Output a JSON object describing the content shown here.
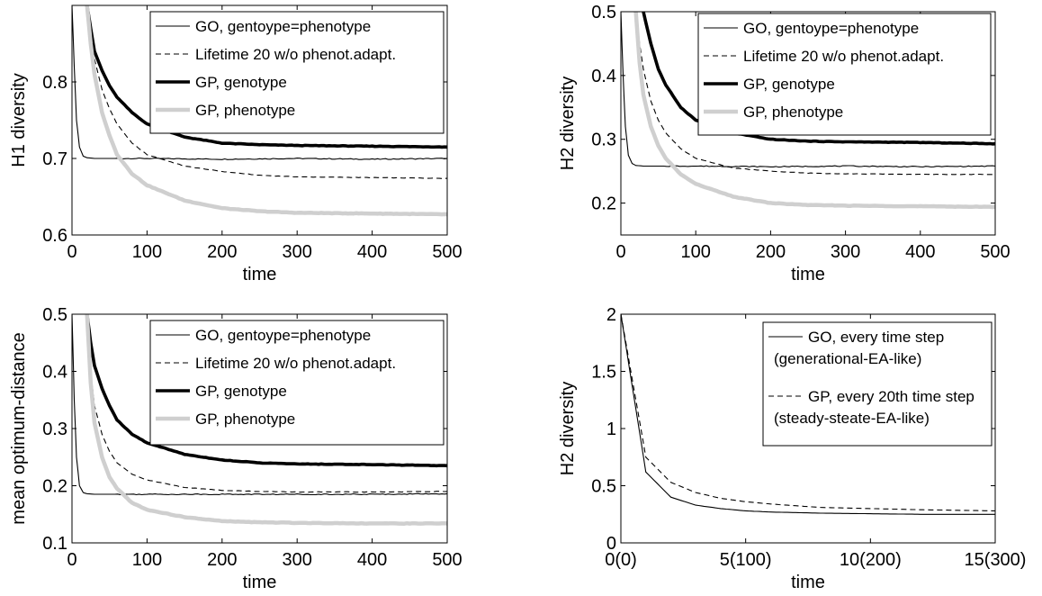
{
  "chart_data": [
    {
      "type": "line",
      "xlabel": "time",
      "ylabel": "H1 diversity",
      "xlim": [
        0,
        500
      ],
      "ylim": [
        0.6,
        0.9
      ],
      "xticks": [
        0,
        100,
        200,
        300,
        400,
        500
      ],
      "xtick_labels": [
        "0",
        "100",
        "200",
        "300",
        "400",
        "500"
      ],
      "yticks": [
        0.6,
        0.7,
        0.8
      ],
      "ytick_labels": [
        "0.6",
        "0.7",
        "0.8"
      ],
      "grid": false,
      "legend_position": "top-right",
      "series": [
        {
          "name": "GO, gentoype=phenotype",
          "style": "thin-solid",
          "x": [
            0,
            3,
            6,
            10,
            15,
            20,
            30,
            50,
            100,
            200,
            300,
            400,
            500
          ],
          "y": [
            0.9,
            0.82,
            0.75,
            0.715,
            0.703,
            0.701,
            0.7,
            0.7,
            0.7,
            0.699,
            0.7,
            0.699,
            0.7
          ]
        },
        {
          "name": "Lifetime 20 w/o phenot.adapt.",
          "style": "thin-dashed",
          "x": [
            20,
            25,
            30,
            40,
            50,
            60,
            80,
            100,
            150,
            200,
            250,
            300,
            400,
            500
          ],
          "y": [
            0.9,
            0.86,
            0.83,
            0.79,
            0.765,
            0.745,
            0.72,
            0.705,
            0.69,
            0.683,
            0.678,
            0.676,
            0.675,
            0.674
          ]
        },
        {
          "name": "GP, genotype",
          "style": "thick-black",
          "x": [
            20,
            25,
            30,
            40,
            50,
            60,
            80,
            100,
            150,
            200,
            250,
            300,
            400,
            500
          ],
          "y": [
            0.9,
            0.87,
            0.84,
            0.815,
            0.795,
            0.78,
            0.76,
            0.745,
            0.728,
            0.72,
            0.718,
            0.717,
            0.716,
            0.715
          ]
        },
        {
          "name": "GP, phenotype",
          "style": "thick-gray",
          "x": [
            20,
            25,
            30,
            40,
            50,
            60,
            80,
            100,
            150,
            200,
            250,
            300,
            400,
            500
          ],
          "y": [
            0.9,
            0.85,
            0.81,
            0.76,
            0.73,
            0.705,
            0.68,
            0.665,
            0.645,
            0.635,
            0.631,
            0.629,
            0.628,
            0.627
          ]
        }
      ]
    },
    {
      "type": "line",
      "xlabel": "time",
      "ylabel": "H2 diversity",
      "xlim": [
        0,
        500
      ],
      "ylim": [
        0.15,
        0.5
      ],
      "xticks": [
        0,
        100,
        200,
        300,
        400,
        500
      ],
      "xtick_labels": [
        "0",
        "100",
        "200",
        "300",
        "400",
        "500"
      ],
      "yticks": [
        0.2,
        0.3,
        0.4,
        0.5
      ],
      "ytick_labels": [
        "0.2",
        "0.3",
        "0.4",
        "0.5"
      ],
      "grid": false,
      "legend_position": "top-right",
      "series": [
        {
          "name": "GO, gentoype=phenotype",
          "style": "thin-solid",
          "x": [
            0,
            3,
            6,
            10,
            15,
            20,
            30,
            50,
            100,
            200,
            300,
            400,
            500
          ],
          "y": [
            0.5,
            0.4,
            0.32,
            0.275,
            0.262,
            0.259,
            0.258,
            0.258,
            0.258,
            0.257,
            0.258,
            0.257,
            0.258
          ]
        },
        {
          "name": "Lifetime 20 w/o phenot.adapt.",
          "style": "thin-dashed",
          "x": [
            20,
            25,
            30,
            40,
            50,
            60,
            80,
            100,
            150,
            200,
            250,
            300,
            400,
            500
          ],
          "y": [
            0.5,
            0.45,
            0.41,
            0.36,
            0.33,
            0.31,
            0.285,
            0.27,
            0.255,
            0.25,
            0.247,
            0.246,
            0.245,
            0.245
          ]
        },
        {
          "name": "GP, genotype",
          "style": "thick-black",
          "x": [
            20,
            30,
            40,
            50,
            60,
            80,
            100,
            150,
            200,
            250,
            300,
            400,
            500
          ],
          "y": [
            0.55,
            0.5,
            0.45,
            0.41,
            0.385,
            0.35,
            0.33,
            0.31,
            0.3,
            0.297,
            0.296,
            0.295,
            0.293
          ]
        },
        {
          "name": "GP, phenotype",
          "style": "thick-gray",
          "x": [
            20,
            25,
            30,
            40,
            50,
            60,
            80,
            100,
            150,
            200,
            250,
            300,
            400,
            500
          ],
          "y": [
            0.5,
            0.42,
            0.37,
            0.32,
            0.29,
            0.27,
            0.245,
            0.23,
            0.21,
            0.2,
            0.197,
            0.196,
            0.195,
            0.194
          ]
        }
      ]
    },
    {
      "type": "line",
      "xlabel": "time",
      "ylabel": "mean optimum-distance",
      "xlim": [
        0,
        500
      ],
      "ylim": [
        0.1,
        0.5
      ],
      "xticks": [
        0,
        100,
        200,
        300,
        400,
        500
      ],
      "xtick_labels": [
        "0",
        "100",
        "200",
        "300",
        "400",
        "500"
      ],
      "yticks": [
        0.1,
        0.2,
        0.3,
        0.4,
        0.5
      ],
      "ytick_labels": [
        "0.1",
        "0.2",
        "0.3",
        "0.4",
        "0.5"
      ],
      "grid": false,
      "legend_position": "top-right",
      "series": [
        {
          "name": "GO, gentoype=phenotype",
          "style": "thin-solid",
          "x": [
            0,
            3,
            6,
            10,
            15,
            20,
            30,
            50,
            100,
            200,
            300,
            400,
            500
          ],
          "y": [
            0.5,
            0.35,
            0.25,
            0.2,
            0.188,
            0.186,
            0.185,
            0.185,
            0.185,
            0.185,
            0.185,
            0.185,
            0.186
          ]
        },
        {
          "name": "Lifetime 20 w/o phenot.adapt.",
          "style": "thin-dashed",
          "x": [
            20,
            25,
            30,
            40,
            50,
            60,
            80,
            100,
            150,
            200,
            250,
            300,
            400,
            500
          ],
          "y": [
            0.5,
            0.4,
            0.34,
            0.29,
            0.26,
            0.24,
            0.22,
            0.21,
            0.197,
            0.192,
            0.19,
            0.189,
            0.189,
            0.19
          ]
        },
        {
          "name": "GP, genotype",
          "style": "thick-black",
          "x": [
            20,
            25,
            30,
            40,
            50,
            60,
            80,
            100,
            150,
            200,
            250,
            300,
            400,
            500
          ],
          "y": [
            0.5,
            0.45,
            0.41,
            0.37,
            0.34,
            0.315,
            0.29,
            0.275,
            0.255,
            0.245,
            0.24,
            0.238,
            0.237,
            0.235
          ]
        },
        {
          "name": "GP, phenotype",
          "style": "thick-gray",
          "x": [
            20,
            25,
            30,
            40,
            50,
            60,
            80,
            100,
            150,
            200,
            250,
            300,
            400,
            500
          ],
          "y": [
            0.5,
            0.38,
            0.31,
            0.25,
            0.215,
            0.195,
            0.17,
            0.158,
            0.145,
            0.138,
            0.136,
            0.135,
            0.134,
            0.134
          ]
        }
      ]
    },
    {
      "type": "line",
      "xlabel": "time",
      "ylabel": "H2 diversity",
      "xlim": [
        0,
        15
      ],
      "ylim": [
        0,
        2
      ],
      "xticks": [
        0,
        5,
        10,
        15
      ],
      "xtick_labels": [
        "0(0)",
        "5(100)",
        "10(200)",
        "15(300)"
      ],
      "yticks": [
        0,
        0.5,
        1,
        1.5,
        2
      ],
      "ytick_labels": [
        "0",
        "0.5",
        "1",
        "1.5",
        "2"
      ],
      "grid": false,
      "legend_position": "top-right",
      "series": [
        {
          "name": "GO, every time step",
          "name_line2": "(generational-EA-like)",
          "style": "thin-solid",
          "x": [
            0,
            1,
            2,
            3,
            4,
            5,
            6,
            8,
            10,
            12,
            15
          ],
          "y": [
            2.0,
            0.62,
            0.4,
            0.33,
            0.3,
            0.28,
            0.27,
            0.26,
            0.255,
            0.25,
            0.25
          ]
        },
        {
          "name": "GP, every 20th time step",
          "name_line2": "(steady-steate-EA-like)",
          "style": "thin-dashed",
          "x": [
            0,
            1,
            2,
            3,
            4,
            5,
            6,
            8,
            10,
            12,
            15
          ],
          "y": [
            2.0,
            0.75,
            0.53,
            0.44,
            0.39,
            0.36,
            0.34,
            0.31,
            0.3,
            0.29,
            0.28
          ]
        }
      ]
    }
  ]
}
